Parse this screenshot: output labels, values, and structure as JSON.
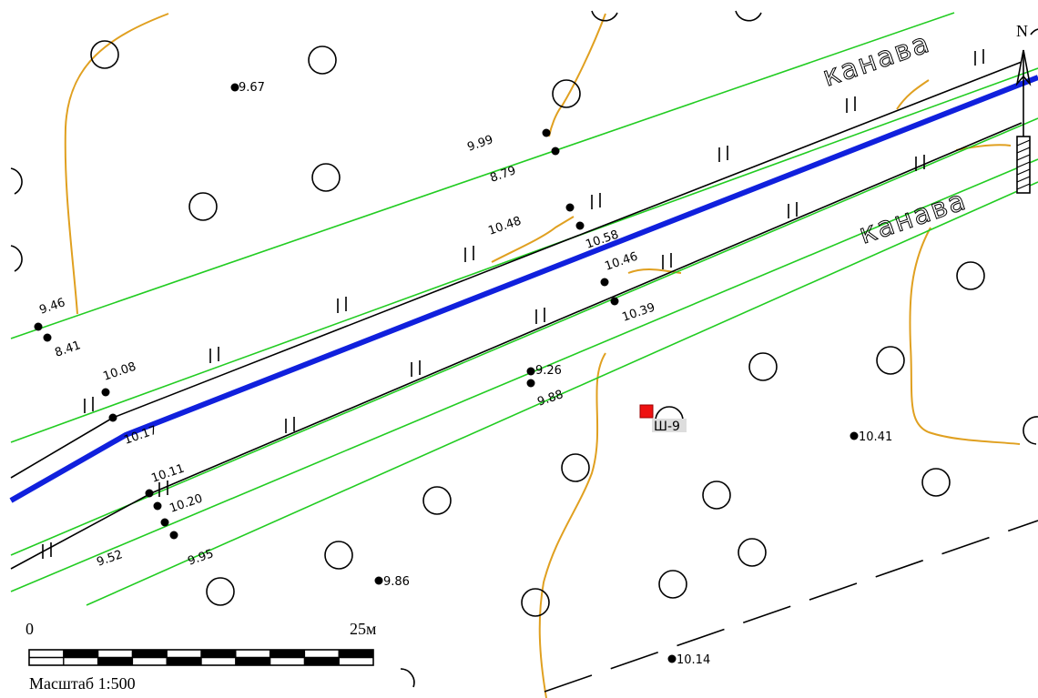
{
  "map": {
    "ditch_labels": [
      "канава",
      "канава"
    ],
    "north_label": "N",
    "shaft_label": "Ш-9",
    "scale": {
      "start": "0",
      "end": "25м",
      "caption": "Масштаб 1:500"
    },
    "elevations": [
      "9.67",
      "9.99",
      "8.79",
      "10.48",
      "10.58",
      "10.46",
      "10.39",
      "9.46",
      "8.41",
      "10.08",
      "10.17",
      "9.26",
      "9.88",
      "10.11",
      "10.20",
      "9.52",
      "9.95",
      "9.86",
      "10.41",
      "10.14"
    ],
    "colors": {
      "road_edge": "#22cc22",
      "pipeline": "#1020dd",
      "contour": "#e0a020",
      "shaft_marker": "#ee1111",
      "lines": "#000000"
    }
  }
}
